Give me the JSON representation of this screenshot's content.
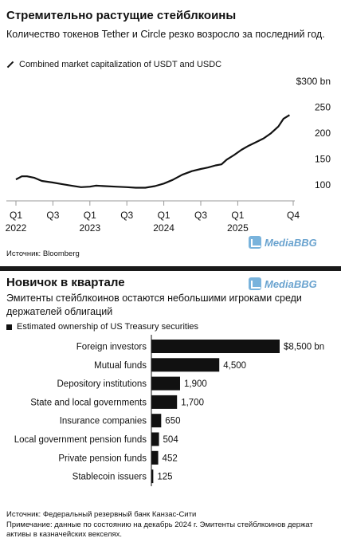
{
  "chart1": {
    "title": "Стремительно растущие стейблкоины",
    "subtitle": "Количество токенов Tether и Circle резко возросло за последний год.",
    "legend": "Combined market capitalization of USDT and USDC",
    "source": "Источник: Bloomberg"
  },
  "chart2": {
    "title": "Новичок в квартале",
    "subtitle": "Эмитенты стейблкоинов остаются небольшими игроками среди держателей облигаций",
    "legend": "Estimated ownership of US Treasury securities",
    "source": "Источник: Федеральный резервный банк Канзас-Сити",
    "note": "Примечание: данные по состоянию на декабрь 2024 г. Эмитенты стейблкоинов держат активы в казначейских векселях."
  },
  "watermark": "MediaBBG",
  "chart_data": [
    {
      "type": "line",
      "title": "Стремительно растущие стейблкоины",
      "series": [
        {
          "name": "Combined market capitalization of USDT and USDC",
          "x": [
            2022.0,
            2022.08,
            2022.15,
            2022.25,
            2022.35,
            2022.5,
            2022.62,
            2022.75,
            2022.88,
            2023.0,
            2023.08,
            2023.2,
            2023.35,
            2023.5,
            2023.62,
            2023.75,
            2023.88,
            2024.0,
            2024.12,
            2024.25,
            2024.38,
            2024.5,
            2024.6,
            2024.7,
            2024.78,
            2024.85,
            2024.95,
            2025.05,
            2025.15,
            2025.25,
            2025.35,
            2025.45,
            2025.55,
            2025.62,
            2025.7
          ],
          "values": [
            111,
            117,
            117,
            114,
            108,
            105,
            102,
            99,
            96,
            97,
            99,
            98,
            97,
            96,
            95,
            95,
            98,
            103,
            110,
            120,
            127,
            131,
            134,
            138,
            140,
            149,
            158,
            168,
            176,
            183,
            190,
            200,
            213,
            228,
            235
          ]
        }
      ],
      "x_ticks": [
        {
          "x": 2022.0,
          "top": "Q1",
          "bottom": "2022"
        },
        {
          "x": 2022.5,
          "top": "Q3",
          "bottom": ""
        },
        {
          "x": 2023.0,
          "top": "Q1",
          "bottom": "2023"
        },
        {
          "x": 2023.5,
          "top": "Q3",
          "bottom": ""
        },
        {
          "x": 2024.0,
          "top": "Q1",
          "bottom": "2024"
        },
        {
          "x": 2024.5,
          "top": "Q3",
          "bottom": ""
        },
        {
          "x": 2025.0,
          "top": "Q1",
          "bottom": "2025"
        },
        {
          "x": 2025.75,
          "top": "Q4",
          "bottom": ""
        }
      ],
      "y_ticks": [
        {
          "v": 100,
          "label": "100"
        },
        {
          "v": 150,
          "label": "150"
        },
        {
          "v": 200,
          "label": "200"
        },
        {
          "v": 250,
          "label": "250"
        },
        {
          "v": 300,
          "label": "$300 bn"
        }
      ],
      "xlim": [
        2022.0,
        2025.75
      ],
      "ylim": [
        85,
        300
      ],
      "grid": false
    },
    {
      "type": "bar",
      "orientation": "horizontal",
      "title": "Новичок в квартале",
      "categories": [
        "Foreign investors",
        "Mutual funds",
        "Depository institutions",
        "State and local governments",
        "Insurance companies",
        "Local government pension funds",
        "Private pension funds",
        "Stablecoin issuers"
      ],
      "series": [
        {
          "name": "Estimated ownership of US Treasury securities",
          "values": [
            8500,
            4500,
            1900,
            1700,
            650,
            504,
            452,
            125
          ]
        }
      ],
      "value_labels": [
        "$8,500 bn",
        "4,500",
        "1,900",
        "1,700",
        "650",
        "504",
        "452",
        "125"
      ],
      "xlim": [
        0,
        8500
      ],
      "grid": false
    }
  ]
}
